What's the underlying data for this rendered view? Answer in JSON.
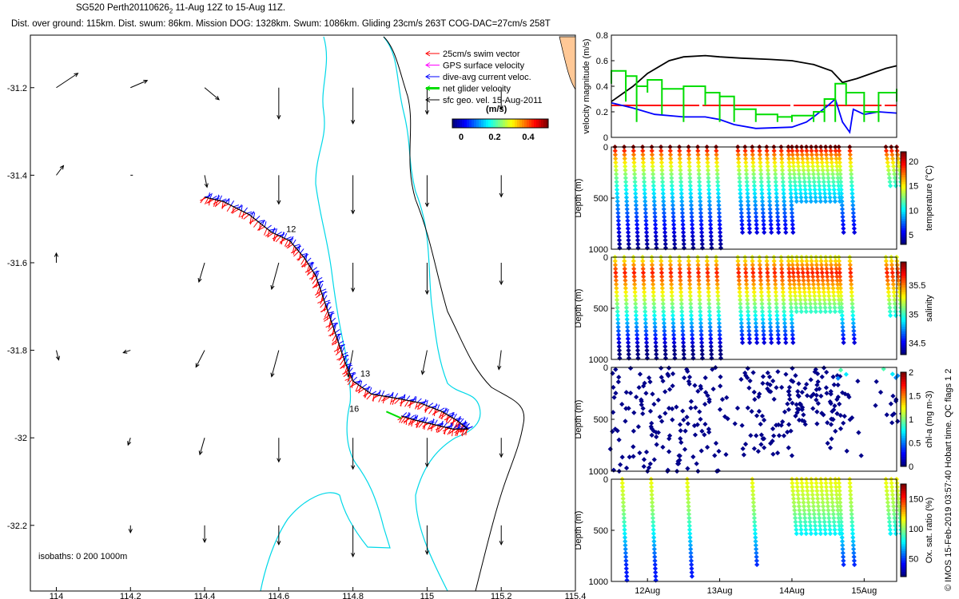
{
  "header": {
    "line1": "SG520 Perth20110626",
    "line1_sub": "2",
    "line1_rest": " 11-Aug 12Z to 15-Aug 11Z.",
    "line2": "Dist. over ground: 115km. Dist. swum: 86km. Mission DOG: 1328km. Swum: 1086km. Gliding 23cm/s 263T COG-DAC=27cm/s 258T"
  },
  "colors": {
    "track_red": "#ff0000",
    "current_blue": "#0000ff",
    "net_green": "#00dd00",
    "gps_magenta": "#ff00ff",
    "isobath": "#00d8e8",
    "land": "#ffc896"
  },
  "side_text": "© IMOS 15-Feb-2019 03:57:40 Hobart time. QC flags 1  2",
  "chart_data": [
    {
      "id": "map",
      "type": "scatter",
      "title": "",
      "x_ticks": [
        "114",
        "114.2",
        "114.4",
        "114.6",
        "114.8",
        "115",
        "115.2",
        "115.4"
      ],
      "x_tick_values": [
        114,
        114.2,
        114.4,
        114.6,
        114.8,
        115,
        115.2,
        115.4
      ],
      "y_ticks": [
        "-31.2",
        "-31.4",
        "-31.6",
        "-31.8",
        "-32",
        "-32.2"
      ],
      "y_tick_values": [
        -31.2,
        -31.4,
        -31.6,
        -31.8,
        -32,
        -32.2
      ],
      "xlim": [
        113.93,
        115.4
      ],
      "ylim": [
        -32.35,
        -31.08
      ],
      "legend": [
        {
          "label": "25cm/s swim vector",
          "color": "#ff0000"
        },
        {
          "label": "GPS surface velocity",
          "color": "#ff00ff"
        },
        {
          "label": "dive-avg current veloc.",
          "color": "#0000ff"
        },
        {
          "label": "net glider velocity",
          "color": "#00dd00"
        },
        {
          "label": "sfc geo. vel. 15-Aug-2011",
          "color": "#000000"
        }
      ],
      "colorbar_title": "(m/s)",
      "colorbar_ticks": [
        "0",
        "0.2",
        "0.4"
      ],
      "isobath_label": "isobaths: 0   200   1000m",
      "day_labels": [
        {
          "text": "12",
          "lon": 114.62,
          "lat": -31.53
        },
        {
          "text": "13",
          "lon": 114.82,
          "lat": -31.86
        },
        {
          "text": "16",
          "lon": 114.79,
          "lat": -31.94
        }
      ],
      "track": [
        [
          114.4,
          -31.45
        ],
        [
          114.45,
          -31.46
        ],
        [
          114.52,
          -31.49
        ],
        [
          114.58,
          -31.53
        ],
        [
          114.63,
          -31.55
        ],
        [
          114.67,
          -31.59
        ],
        [
          114.7,
          -31.63
        ],
        [
          114.72,
          -31.68
        ],
        [
          114.74,
          -31.73
        ],
        [
          114.76,
          -31.78
        ],
        [
          114.78,
          -31.83
        ],
        [
          114.8,
          -31.87
        ],
        [
          114.85,
          -31.9
        ],
        [
          114.92,
          -31.91
        ],
        [
          114.98,
          -31.92
        ],
        [
          115.04,
          -31.94
        ],
        [
          115.08,
          -31.96
        ],
        [
          115.11,
          -31.98
        ],
        [
          115.07,
          -31.98
        ],
        [
          115.02,
          -31.97
        ],
        [
          114.97,
          -31.96
        ],
        [
          114.93,
          -31.95
        ]
      ],
      "sfc_vectors": {
        "lons": [
          114,
          114.2,
          114.4,
          114.6,
          114.8,
          115,
          115.2
        ],
        "lats": [
          -31.2,
          -31.4,
          -31.6,
          -31.8,
          -32,
          -32.2
        ],
        "u": [
          [
            0.45,
            0.35,
            0.3,
            0.0,
            0.0,
            0.0,
            0.0
          ],
          [
            0.15,
            0.05,
            0.05,
            0.0,
            0.0,
            0.0,
            0.0
          ],
          [
            0.0,
            0.0,
            -0.12,
            -0.15,
            0.0,
            0.0,
            0.0
          ],
          [
            0.05,
            -0.15,
            -0.18,
            -0.15,
            -0.1,
            -0.1,
            -0.05
          ],
          [
            0.0,
            -0.05,
            -0.1,
            0.0,
            0.0,
            0.0,
            0.0
          ],
          [
            0.0,
            0.0,
            0.0,
            0.0,
            0.0,
            0.0,
            0.0
          ]
        ],
        "v": [
          [
            0.3,
            0.15,
            -0.25,
            -0.65,
            -0.75,
            -0.55,
            -0.45
          ],
          [
            0.2,
            0.0,
            -0.25,
            -0.6,
            -0.8,
            -0.65,
            -0.45
          ],
          [
            0.2,
            0.0,
            -0.4,
            -0.55,
            -0.6,
            -0.65,
            -0.45
          ],
          [
            -0.2,
            -0.05,
            -0.35,
            -0.55,
            -0.55,
            -0.5,
            -0.4
          ],
          [
            0.0,
            -0.15,
            -0.35,
            -0.5,
            -0.65,
            -0.6,
            -0.4
          ],
          [
            0.0,
            -0.15,
            -0.35,
            -0.4,
            -0.65,
            -0.6,
            -0.4
          ]
        ]
      }
    },
    {
      "id": "velocity",
      "type": "line",
      "ylabel": "velocity magnitude (m/s)",
      "y_ticks": [
        "0",
        "0.2",
        "0.4",
        "0.6",
        "0.8"
      ],
      "ylim": [
        0,
        0.8
      ],
      "xlim": [
        11.5,
        15.45
      ],
      "series": [
        {
          "name": "black",
          "color": "#000000",
          "x": [
            11.5,
            11.8,
            12.0,
            12.3,
            12.5,
            12.8,
            13.0,
            13.3,
            13.7,
            14.0,
            14.3,
            14.55,
            14.7,
            14.9,
            15.1,
            15.3,
            15.45
          ],
          "y": [
            0.28,
            0.4,
            0.5,
            0.6,
            0.63,
            0.64,
            0.63,
            0.62,
            0.61,
            0.6,
            0.57,
            0.52,
            0.43,
            0.46,
            0.5,
            0.54,
            0.56
          ]
        },
        {
          "name": "red",
          "color": "#ff0000",
          "x": [
            11.5,
            15.45
          ],
          "y": [
            0.25,
            0.25
          ]
        },
        {
          "name": "blue",
          "color": "#0000ff",
          "x": [
            11.5,
            11.8,
            12.1,
            12.5,
            12.8,
            13.0,
            13.2,
            13.5,
            14.0,
            14.2,
            14.3,
            14.5,
            14.6,
            14.7,
            14.8,
            14.85,
            15.0,
            15.2,
            15.45
          ],
          "y": [
            0.27,
            0.23,
            0.18,
            0.16,
            0.16,
            0.14,
            0.1,
            0.07,
            0.08,
            0.12,
            0.16,
            0.25,
            0.3,
            0.12,
            0.04,
            0.22,
            0.18,
            0.2,
            0.19
          ]
        },
        {
          "name": "green",
          "color": "#00dd00",
          "x": [
            11.5,
            11.7,
            11.85,
            12.0,
            12.2,
            12.5,
            12.8,
            13.0,
            13.2,
            13.5,
            13.8,
            14.0,
            14.3,
            14.45,
            14.6,
            14.75,
            15.0,
            15.2,
            15.45
          ],
          "y": [
            0.52,
            0.48,
            0.4,
            0.45,
            0.38,
            0.4,
            0.35,
            0.32,
            0.22,
            0.18,
            0.16,
            0.17,
            0.2,
            0.3,
            0.42,
            0.35,
            0.2,
            0.35,
            0.38
          ]
        }
      ]
    },
    {
      "id": "temperature",
      "type": "scatter",
      "ylabel": "Depth (m)",
      "cbar_label": "temperature (°C)",
      "cbar_ticks": [
        "5",
        "10",
        "15",
        "20"
      ],
      "cbar_range": [
        3,
        22
      ],
      "y_ticks": [
        "0",
        "500",
        "1000"
      ],
      "ylim": [
        0,
        1000
      ],
      "xlim": [
        11.5,
        15.45
      ],
      "segments": [
        {
          "start": 11.55,
          "end": 12.95,
          "count": 12,
          "max": 1000
        },
        {
          "start": 13.25,
          "end": 13.95,
          "count": 8,
          "max": 850
        },
        {
          "start": 14.0,
          "end": 14.6,
          "count": 10,
          "max": 550
        },
        {
          "start": 14.65,
          "end": 14.8,
          "count": 2,
          "max": 850
        },
        {
          "start": 15.3,
          "end": 15.45,
          "count": 3,
          "max": 400
        }
      ]
    },
    {
      "id": "salinity",
      "type": "scatter",
      "ylabel": "Depth (m)",
      "cbar_label": "salinity",
      "cbar_ticks": [
        "34.5",
        "35",
        "35.5"
      ],
      "cbar_range": [
        34.3,
        35.9
      ],
      "y_ticks": [
        "0",
        "500",
        "1000"
      ],
      "ylim": [
        0,
        1000
      ],
      "xlim": [
        11.5,
        15.45
      ],
      "segments": [
        {
          "start": 11.55,
          "end": 12.95,
          "count": 12,
          "max": 1000
        },
        {
          "start": 13.25,
          "end": 13.95,
          "count": 8,
          "max": 850
        },
        {
          "start": 14.0,
          "end": 14.6,
          "count": 10,
          "max": 550
        },
        {
          "start": 14.65,
          "end": 14.8,
          "count": 2,
          "max": 850
        },
        {
          "start": 15.3,
          "end": 15.45,
          "count": 3,
          "max": 600
        }
      ]
    },
    {
      "id": "chla",
      "type": "scatter",
      "ylabel": "Depth (m)",
      "cbar_label": "chl-a (mg m-3)",
      "cbar_ticks": [
        "0",
        "0.5",
        "1",
        "1.5",
        "2"
      ],
      "cbar_range": [
        0,
        2
      ],
      "y_ticks": [
        "0",
        "500",
        "1000"
      ],
      "ylim": [
        0,
        1000
      ],
      "xlim": [
        11.5,
        15.45
      ],
      "segments": [
        {
          "start": 11.55,
          "end": 12.95,
          "count": 12,
          "max": 1000
        },
        {
          "start": 13.25,
          "end": 13.95,
          "count": 8,
          "max": 850
        },
        {
          "start": 14.0,
          "end": 14.6,
          "count": 10,
          "max": 550
        },
        {
          "start": 14.65,
          "end": 14.8,
          "count": 2,
          "max": 850
        },
        {
          "start": 15.3,
          "end": 15.45,
          "count": 3,
          "max": 600
        }
      ]
    },
    {
      "id": "oxygen",
      "type": "scatter",
      "ylabel": "Depth (m)",
      "cbar_label": "Ox. sat. ratio (%)",
      "cbar_ticks": [
        "50",
        "100",
        "150"
      ],
      "cbar_range": [
        20,
        175
      ],
      "y_ticks": [
        "0",
        "500",
        "1000"
      ],
      "ylim": [
        0,
        1000
      ],
      "xlim": [
        11.5,
        15.45
      ],
      "x_ticks": [
        "12Aug",
        "13Aug",
        "14Aug",
        "15Aug"
      ],
      "x_tick_values": [
        12,
        13,
        14,
        15
      ],
      "segments": [
        {
          "start": 11.65,
          "end": 11.75,
          "count": 1,
          "max": 1000
        },
        {
          "start": 12.05,
          "end": 12.15,
          "count": 1,
          "max": 1000
        },
        {
          "start": 12.55,
          "end": 12.6,
          "count": 1,
          "max": 950
        },
        {
          "start": 13.45,
          "end": 13.5,
          "count": 1,
          "max": 850
        },
        {
          "start": 14.0,
          "end": 14.6,
          "count": 10,
          "max": 550
        },
        {
          "start": 14.65,
          "end": 14.8,
          "count": 2,
          "max": 850
        },
        {
          "start": 15.3,
          "end": 15.45,
          "count": 3,
          "max": 550
        }
      ]
    }
  ]
}
